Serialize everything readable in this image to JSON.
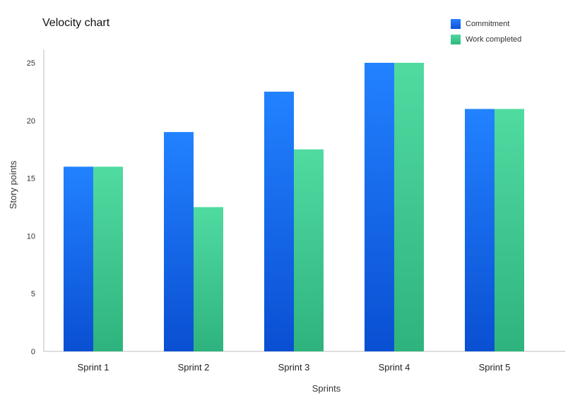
{
  "chart_data": {
    "type": "bar",
    "title": "Velocity chart",
    "xlabel": "Sprints",
    "ylabel": "Story points",
    "categories": [
      "Sprint 1",
      "Sprint 2",
      "Sprint 3",
      "Sprint 4",
      "Sprint 5"
    ],
    "series": [
      {
        "name": "Commitment",
        "values": [
          16,
          19,
          22.5,
          25,
          21
        ],
        "color": "#1f6fe0"
      },
      {
        "name": "Work completed",
        "values": [
          16,
          12.5,
          17.5,
          25,
          21
        ],
        "color": "#3cc48a"
      }
    ],
    "ylim": [
      0,
      25
    ],
    "yticks": [
      0,
      5,
      10,
      15,
      20,
      25
    ],
    "grid": false,
    "legend_position": "top-right"
  }
}
